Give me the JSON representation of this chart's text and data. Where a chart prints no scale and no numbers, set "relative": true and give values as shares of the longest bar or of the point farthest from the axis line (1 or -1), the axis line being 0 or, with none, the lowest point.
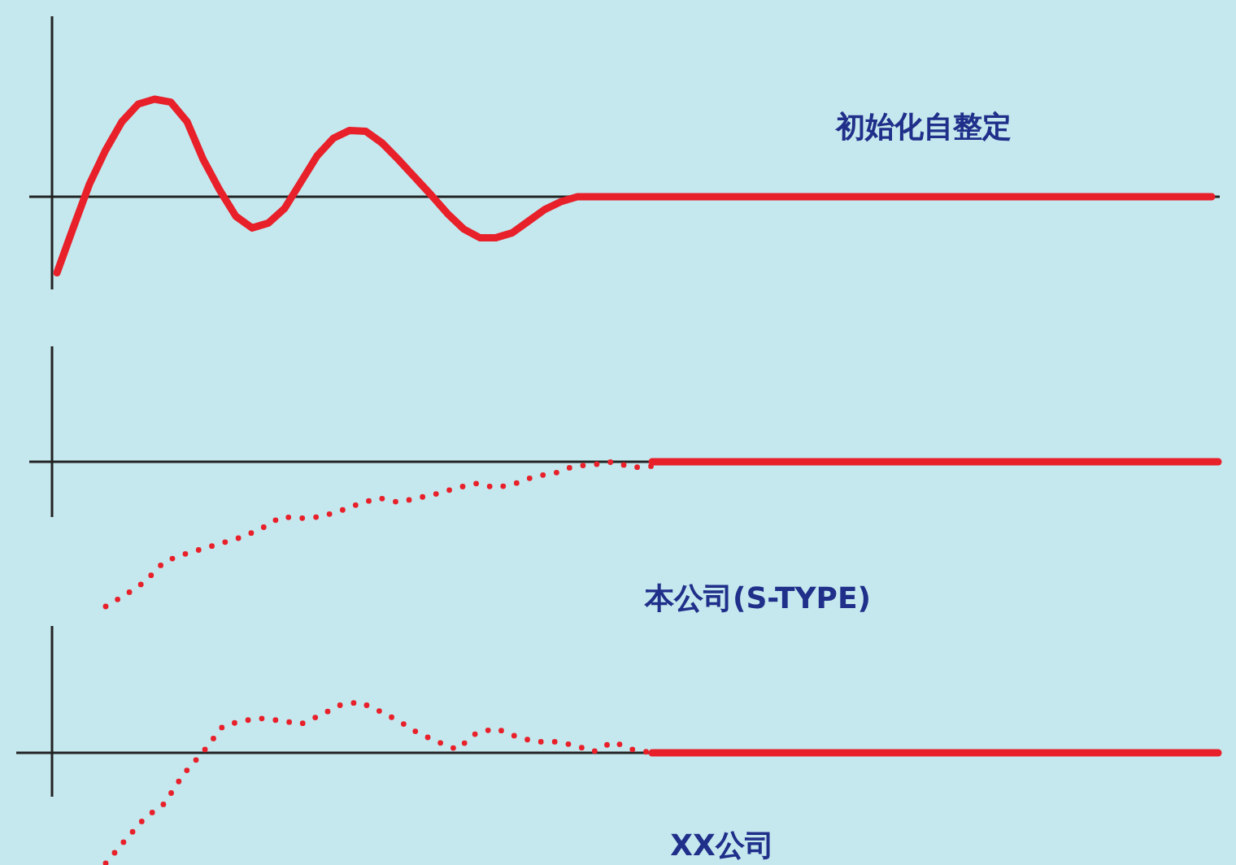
{
  "chart_data": [
    {
      "type": "line",
      "title": "初始化自整定",
      "relative": true,
      "categories": [
        null,
        null,
        null,
        null,
        null,
        null,
        null,
        null,
        null,
        null,
        null,
        null,
        null,
        null,
        null,
        null,
        null,
        null,
        null,
        null,
        null,
        null,
        null,
        null,
        null,
        null,
        null,
        null,
        null,
        null,
        null,
        null,
        null,
        null,
        null,
        null,
        null,
        null,
        null,
        null,
        null,
        null,
        null,
        null,
        null,
        null,
        null,
        null,
        null,
        null,
        null,
        null,
        null,
        null,
        null,
        null,
        null,
        null,
        null,
        null,
        null,
        null,
        null,
        null,
        null,
        null,
        null,
        null,
        null,
        null,
        null,
        null
      ],
      "series": [
        {
          "color": "#e8202a",
          "values": [
            -0.78,
            -0.32,
            0.13,
            0.48,
            0.77,
            0.95,
            1,
            0.97,
            0.77,
            0.38,
            0.07,
            -0.2,
            -0.32,
            -0.27,
            -0.12,
            0.15,
            0.42,
            0.6,
            0.68,
            0.67,
            0.55,
            0.38,
            0.2,
            0.02,
            -0.17,
            -0.33,
            -0.42,
            -0.42,
            -0.37,
            -0.25,
            -0.13,
            -0.05,
            0,
            0,
            0,
            0,
            0,
            0,
            0,
            0,
            0,
            0,
            0,
            0,
            0,
            0,
            0,
            0,
            0,
            0,
            0,
            0,
            0,
            0,
            0,
            0,
            0,
            0,
            0,
            0,
            0,
            0,
            0,
            0,
            0,
            0,
            0,
            0,
            0,
            0,
            0,
            0
          ]
        }
      ]
    },
    {
      "type": "line",
      "title": "本公司(S-TYPE)",
      "relative": true,
      "categories": [
        null,
        null,
        null,
        null,
        null,
        null,
        null,
        null,
        null,
        null,
        null,
        null,
        null,
        null,
        null,
        null,
        null,
        null,
        null,
        null,
        null,
        null,
        null,
        null,
        null,
        null,
        null,
        null,
        null,
        null,
        null,
        null,
        null,
        null,
        null,
        null,
        null,
        null,
        null,
        null,
        null,
        null,
        null,
        null,
        null,
        null,
        null,
        null,
        null,
        null,
        null,
        null,
        null,
        null,
        null,
        null,
        null,
        null
      ],
      "series": [
        {
          "line_style": "dotted",
          "color": "#e8202a",
          "values": [
            -1,
            -0.92,
            -0.83,
            -0.69,
            -0.64,
            -0.6,
            -0.56,
            -0.52,
            -0.46,
            -0.38,
            -0.39,
            -0.38,
            -0.34,
            -0.29,
            -0.25,
            -0.28,
            -0.25,
            -0.22,
            -0.18,
            -0.15,
            -0.18,
            -0.15,
            -0.1,
            -0.08,
            -0.03,
            -0.02,
            0,
            -0.04,
            -0.03,
            null,
            null,
            null,
            null,
            null,
            null,
            null,
            null,
            null,
            null,
            null,
            null,
            null,
            null,
            null,
            null,
            null,
            null,
            null,
            null,
            null,
            null,
            null,
            null,
            null,
            null,
            null,
            null,
            null
          ]
        },
        {
          "color": "#e8202a",
          "values": [
            null,
            null,
            null,
            null,
            null,
            null,
            null,
            null,
            null,
            null,
            null,
            null,
            null,
            null,
            null,
            null,
            null,
            null,
            null,
            null,
            null,
            null,
            null,
            null,
            null,
            null,
            null,
            null,
            0,
            0,
            0,
            0,
            0,
            0,
            0,
            0,
            0,
            0,
            0,
            0,
            0,
            0,
            0,
            0,
            0,
            0,
            0,
            0,
            0,
            0,
            0,
            0,
            0,
            0,
            0,
            0,
            0,
            0
          ]
        }
      ]
    },
    {
      "type": "line",
      "title": "XX公司",
      "relative": true,
      "categories": [
        null,
        null,
        null,
        null,
        null,
        null,
        null,
        null,
        null,
        null,
        null,
        null,
        null,
        null,
        null,
        null,
        null,
        null,
        null,
        null,
        null,
        null,
        null,
        null,
        null,
        null,
        null,
        null,
        null,
        null,
        null,
        null,
        null,
        null,
        null,
        null,
        null,
        null,
        null,
        null,
        null,
        null,
        null,
        null,
        null,
        null,
        null,
        null,
        null,
        null,
        null,
        null,
        null,
        null,
        null,
        null,
        null,
        null
      ],
      "series": [
        {
          "line_style": "dotted",
          "color": "#e8202a",
          "values": [
            -1,
            -0.79,
            -0.59,
            -0.46,
            -0.19,
            0.01,
            0.24,
            0.29,
            0.31,
            0.29,
            0.26,
            0.34,
            0.43,
            0.46,
            0.38,
            0.29,
            0.18,
            0.1,
            0.03,
            0.18,
            0.22,
            0.15,
            0.1,
            0.1,
            0.07,
            0.01,
            0.1,
            0.03,
            0,
            null,
            null,
            null,
            null,
            null,
            null,
            null,
            null,
            null,
            null,
            null,
            null,
            null,
            null,
            null,
            null,
            null,
            null,
            null,
            null,
            null,
            null,
            null,
            null,
            null,
            null,
            null,
            null,
            null
          ]
        },
        {
          "color": "#e8202a",
          "values": [
            null,
            null,
            null,
            null,
            null,
            null,
            null,
            null,
            null,
            null,
            null,
            null,
            null,
            null,
            null,
            null,
            null,
            null,
            null,
            null,
            null,
            null,
            null,
            null,
            null,
            null,
            null,
            null,
            0,
            0,
            0,
            0,
            0,
            0,
            0,
            0,
            0,
            0,
            0,
            0,
            0,
            0,
            0,
            0,
            0,
            0,
            0,
            0,
            0,
            0,
            0,
            0,
            0,
            0,
            0,
            0,
            0,
            0
          ]
        }
      ]
    }
  ]
}
